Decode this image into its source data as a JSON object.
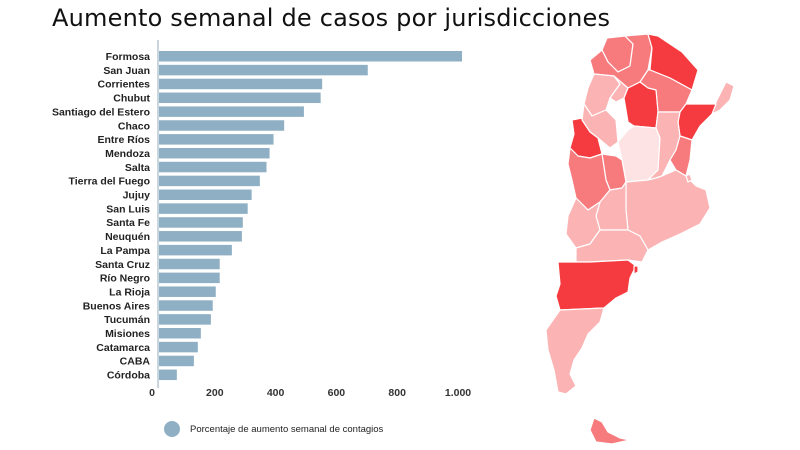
{
  "title": "Aumento semanal de casos por jurisdicciones",
  "chart_data": {
    "type": "bar",
    "orientation": "horizontal",
    "title": "Aumento semanal de casos por jurisdicciones",
    "categories": [
      "Formosa",
      "San Juan",
      "Corrientes",
      "Chubut",
      "Santiago del Estero",
      "Chaco",
      "Entre Ríos",
      "Mendoza",
      "Salta",
      "Tierra del Fuego",
      "Jujuy",
      "San Luis",
      "Santa Fe",
      "Neuquén",
      "La Pampa",
      "Santa Cruz",
      "Río Negro",
      "La Rioja",
      "Buenos Aires",
      "Tucumán",
      "Misiones",
      "Catamarca",
      "CABA",
      "Córdoba"
    ],
    "series": [
      {
        "name": "Porcentaje de aumento semanal de contagios",
        "values": [
          1000,
          690,
          540,
          535,
          480,
          415,
          380,
          367,
          357,
          335,
          308,
          295,
          279,
          276,
          243,
          203,
          203,
          190,
          180,
          174,
          141,
          131,
          118,
          62
        ]
      }
    ],
    "xlim": [
      0,
      1000
    ],
    "xticks": [
      0,
      200,
      400,
      600,
      800,
      1000
    ],
    "xtick_labels": [
      "0",
      "200",
      "400",
      "600",
      "800",
      "1.000"
    ],
    "xlabel": "",
    "ylabel": "",
    "grid": false,
    "legend_position": "bottom",
    "legend": [
      "Porcentaje de aumento semanal de contagios"
    ],
    "bar_color": "#8fb0c4"
  },
  "map": {
    "description_colors": {
      "dark": "#f53b3f",
      "medium": "#f77a7d",
      "light": "#fbb3b4",
      "pale": "#fde3e3"
    }
  }
}
